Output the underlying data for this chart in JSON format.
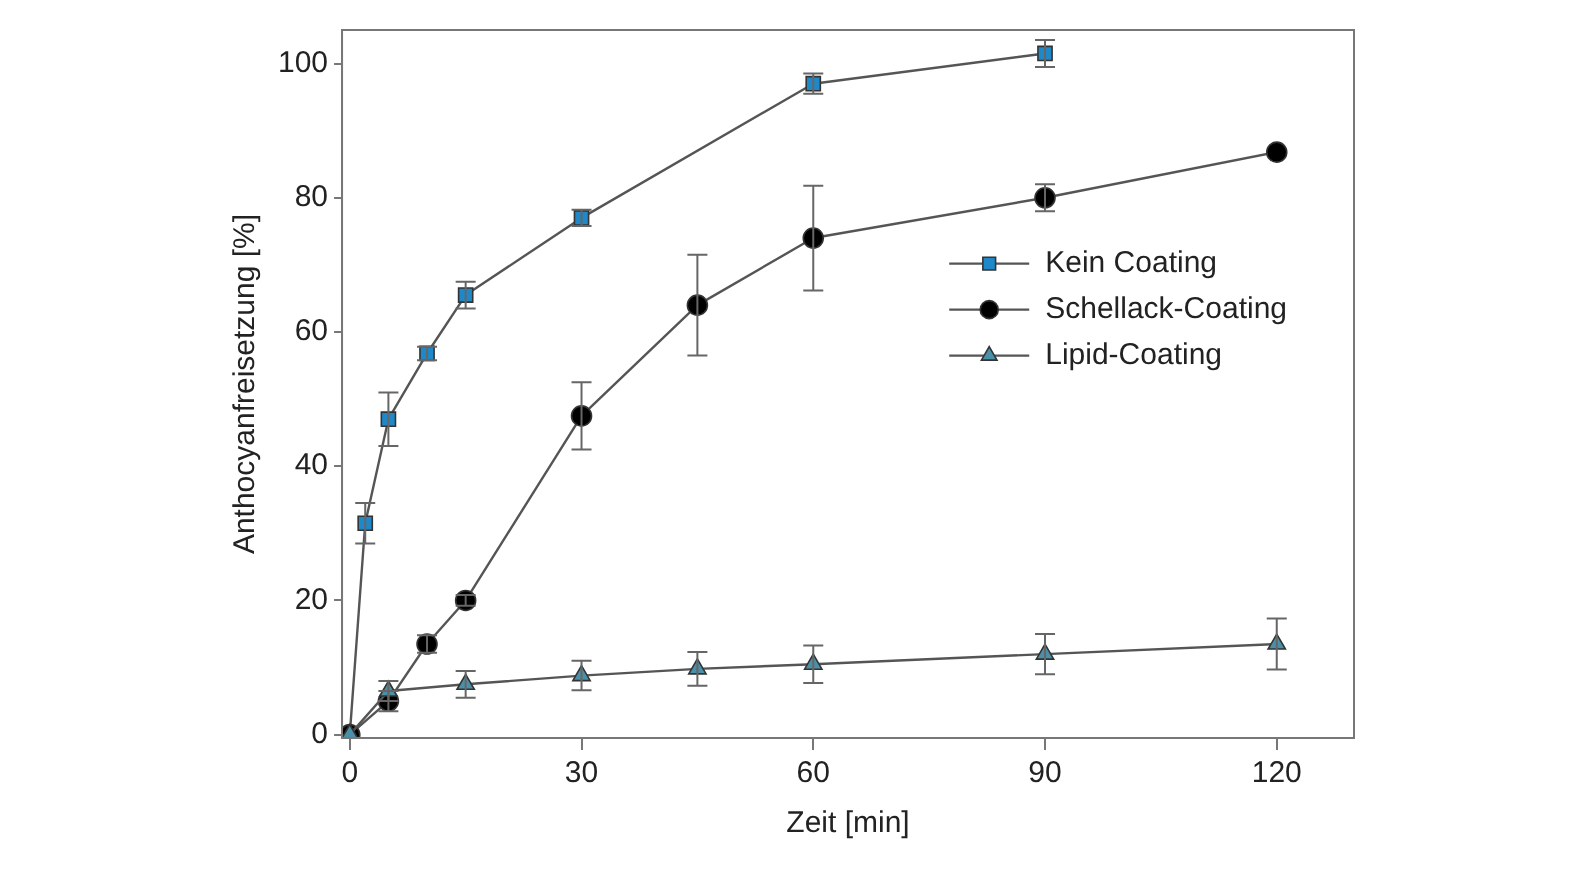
{
  "chart_data": {
    "type": "line",
    "xlabel": "Zeit [min]",
    "ylabel": "Anthocyanfreisetzung [%]",
    "xlim": [
      -1,
      130
    ],
    "xticks": [
      0,
      30,
      60,
      90,
      120
    ],
    "ylim": [
      -0.5,
      105
    ],
    "yticks": [
      0,
      20,
      40,
      60,
      80,
      100
    ],
    "grid": false,
    "legend": "right",
    "line_style": "solid",
    "series": [
      {
        "name": "Kein Coating",
        "color": "#1e88c8",
        "marker": "square",
        "x": [
          0,
          2,
          5,
          10,
          15,
          30,
          60,
          90
        ],
        "values": [
          0,
          31.5,
          47,
          56.8,
          65.5,
          77,
          97,
          101.5
        ],
        "errors": [
          null,
          3,
          4,
          1,
          2,
          1.2,
          1.5,
          2
        ]
      },
      {
        "name": "Schellack-Coating",
        "color": "#000000",
        "marker": "circle",
        "x": [
          0,
          5,
          10,
          15,
          30,
          45,
          60,
          90,
          120
        ],
        "values": [
          0,
          5,
          13.5,
          20,
          47.5,
          64,
          74,
          80,
          86.8
        ],
        "errors": [
          null,
          1.5,
          1.3,
          0.8,
          5,
          7.5,
          7.8,
          2,
          null
        ]
      },
      {
        "name": "Lipid-Coating",
        "color": "#4a90a8",
        "marker": "triangle",
        "x": [
          0,
          5,
          15,
          30,
          45,
          60,
          90,
          120
        ],
        "values": [
          0,
          6.5,
          7.5,
          8.8,
          9.8,
          10.5,
          12,
          13.5
        ],
        "errors": [
          null,
          1.5,
          2,
          2.2,
          2.5,
          2.8,
          3,
          3.8
        ]
      }
    ]
  }
}
